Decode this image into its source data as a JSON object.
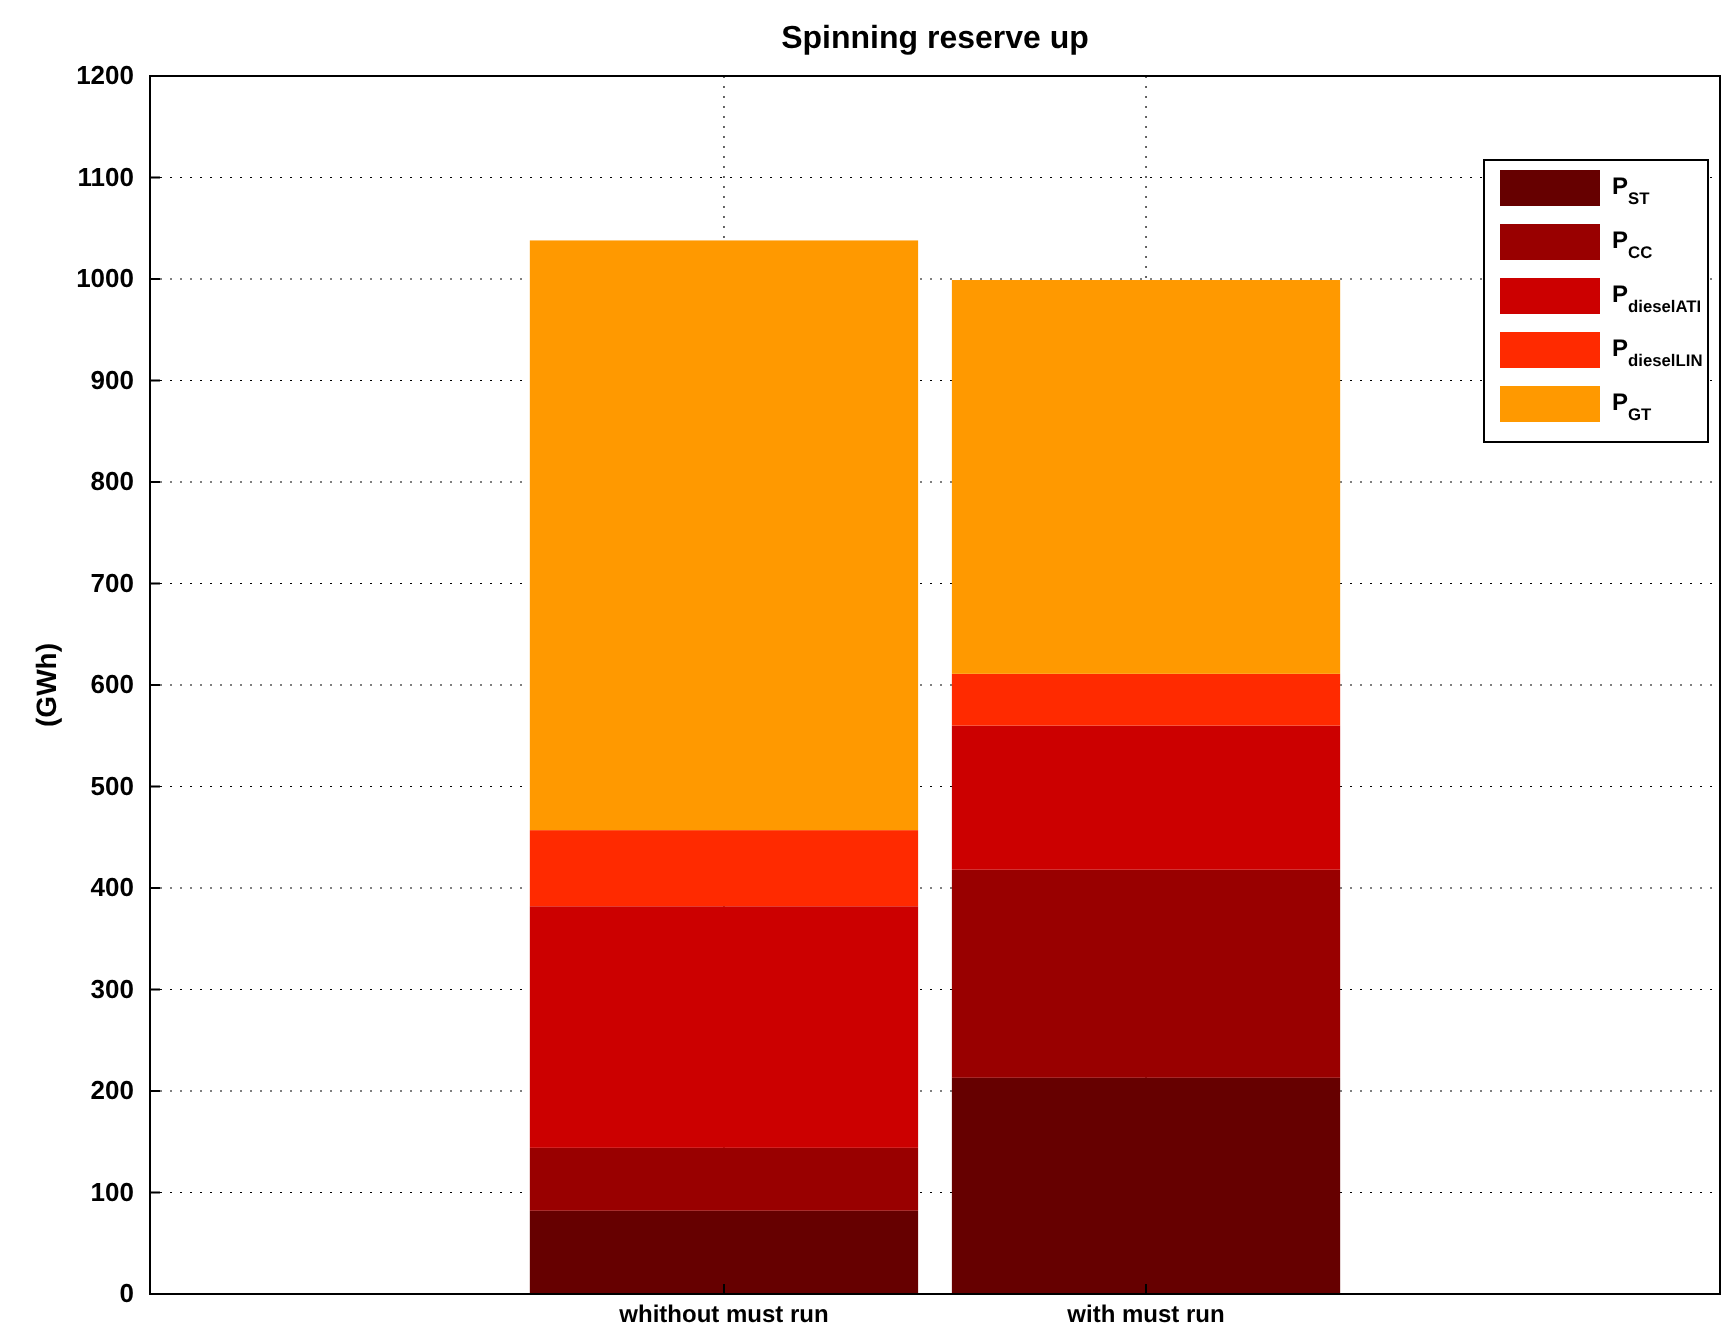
{
  "chart_data": {
    "type": "bar",
    "title": "Spinning reserve up",
    "ylabel": "(GWh)",
    "categories": [
      "whithout must run",
      "with must run"
    ],
    "stacked": true,
    "series": [
      {
        "name": "P$_{ST}$",
        "color": "#660000",
        "values": [
          82,
          213
        ]
      },
      {
        "name": "P$_{CC}$",
        "color": "#990000",
        "values": [
          62,
          205
        ]
      },
      {
        "name": "P$_{dieselATI}$",
        "color": "#cc0000",
        "values": [
          238,
          142
        ]
      },
      {
        "name": "P$_{dieselLIN}$",
        "color": "#ff2a00",
        "values": [
          75,
          51
        ]
      },
      {
        "name": "P$_{GT}$",
        "color": "#ff9900",
        "values": [
          581,
          388
        ]
      }
    ],
    "ylim": [
      0,
      1200
    ],
    "yticks": [
      0,
      100,
      200,
      300,
      400,
      500,
      600,
      700,
      800,
      900,
      1000,
      1100,
      1200
    ],
    "grid": true,
    "legend": "top right"
  }
}
